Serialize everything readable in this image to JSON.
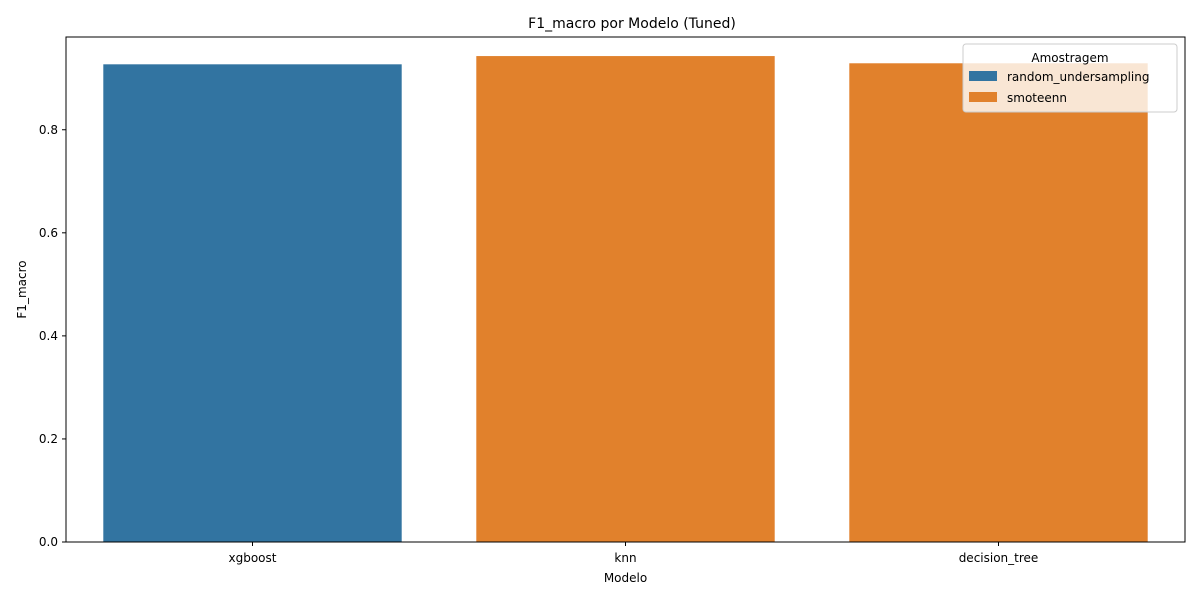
{
  "chart_data": {
    "type": "bar",
    "title": "F1_macro por Modelo (Tuned)",
    "xlabel": "Modelo",
    "ylabel": "F1_macro",
    "categories": [
      "xgboost",
      "knn",
      "decision_tree"
    ],
    "values": [
      0.927,
      0.943,
      0.929
    ],
    "bar_series": [
      "random_undersampling",
      "smoteenn",
      "smoteenn"
    ],
    "ylim": [
      0,
      0.98
    ],
    "yticks": [
      0.0,
      0.2,
      0.4,
      0.6,
      0.8
    ],
    "ytick_labels": [
      "0.0",
      "0.2",
      "0.4",
      "0.6",
      "0.8"
    ],
    "grid": false,
    "legend": {
      "title": "Amostragem",
      "placement": "top-right",
      "entries": [
        {
          "name": "random_undersampling",
          "color": "#3274a1"
        },
        {
          "name": "smoteenn",
          "color": "#e1812c"
        }
      ]
    }
  }
}
